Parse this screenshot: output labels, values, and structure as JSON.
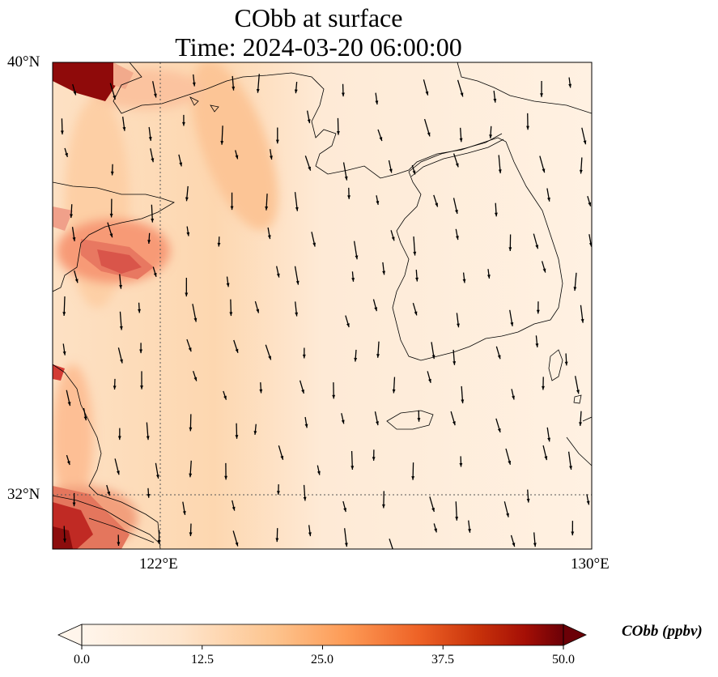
{
  "title": {
    "line1": "CObb at surface",
    "line2": "Time: 2024-03-20 06:00:00"
  },
  "axes": {
    "lat_labels": [
      "40°N",
      "32°N"
    ],
    "lon_labels": [
      "122°E",
      "130°E"
    ],
    "lat_range": [
      31,
      40
    ],
    "lon_range": [
      120,
      130
    ]
  },
  "colorbar": {
    "label": "CObb (ppbv)",
    "ticks": [
      "0.0",
      "12.5",
      "25.0",
      "37.5",
      "50.0"
    ],
    "range": [
      0,
      50
    ],
    "colors": [
      "#fff5eb",
      "#fdd0a2",
      "#fdae6b",
      "#e6550d",
      "#a50f15",
      "#67000d"
    ]
  },
  "colors": {
    "land_line": "#000000",
    "grid": "#555555"
  }
}
